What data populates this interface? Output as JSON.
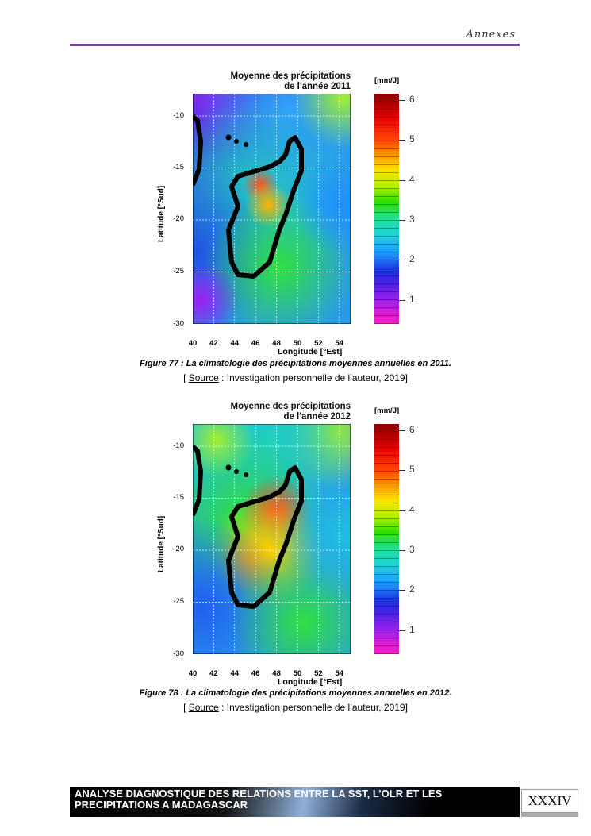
{
  "header": {
    "text": "Annexes"
  },
  "figures": [
    {
      "title_line1": "Moyenne des précipitations",
      "title_line2": "de l'année 2011",
      "unit": "[mm/J]",
      "ylabel": "Latitude [°Sud]",
      "xlabel": "Longitude [°Est]",
      "yticks": [
        "-10",
        "-15",
        "-20",
        "-25",
        "-30"
      ],
      "xticks": [
        "40",
        "42",
        "44",
        "46",
        "48",
        "50",
        "52",
        "54"
      ],
      "colorbar_ticks": [
        "6",
        "5",
        "4",
        "3",
        "2",
        "1"
      ],
      "caption": "Figure 77 : La climatologie des précipitations moyennes annuelles en 2011.",
      "source_open": "[ ",
      "source_label": "Source",
      "source_text": " : Investigation personnelle de l’auteur, 2019]"
    },
    {
      "title_line1": "Moyenne des précipitations",
      "title_line2": "de l'année 2012",
      "unit": "[mm/J]",
      "ylabel": "Latitude [°Sud]",
      "xlabel": "Longitude [°Est]",
      "yticks": [
        "-10",
        "-15",
        "-20",
        "-25",
        "-30"
      ],
      "xticks": [
        "40",
        "42",
        "44",
        "46",
        "48",
        "50",
        "52",
        "54"
      ],
      "colorbar_ticks": [
        "6",
        "5",
        "4",
        "3",
        "2",
        "1"
      ],
      "caption": "Figure 78 : La climatologie des précipitations moyennes annuelles en 2012.",
      "source_open": "[ ",
      "source_label": "Source",
      "source_text": " : Investigation personnelle de l’auteur, 2019]"
    }
  ],
  "footer": {
    "line1": "ANALYSE DIAGNOSTIQUE DES RELATIONS ENTRE LA SST, L’OLR ET LES",
    "line2": "PRECIPITATIONS A MADAGASCAR",
    "page_number": "XXXIV"
  }
}
